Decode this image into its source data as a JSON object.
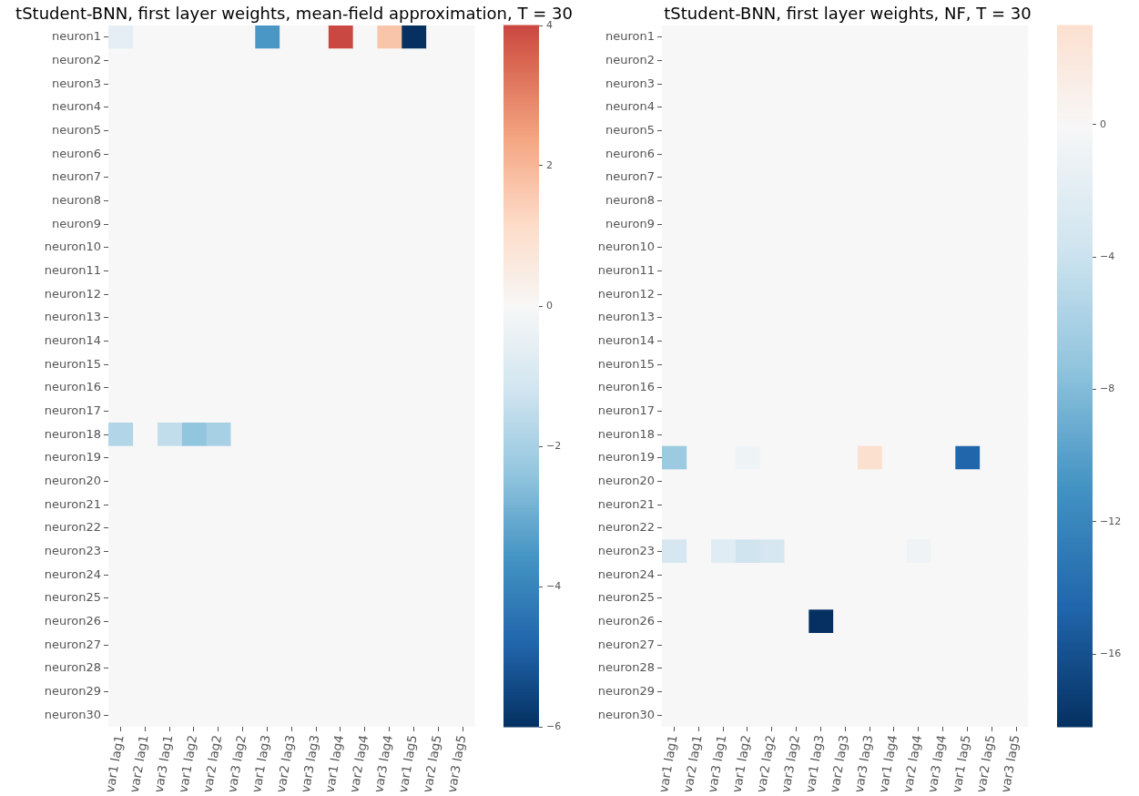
{
  "chart_data": [
    {
      "type": "heatmap",
      "title": "tStudent-BNN, first layer weights, mean-field approximation, T = 30",
      "categories": [
        "var1 lag1",
        "var2 lag1",
        "var3 lag1",
        "var1 lag2",
        "var2 lag2",
        "var3 lag2",
        "var1 lag3",
        "var2 lag3",
        "var3 lag3",
        "var1 lag4",
        "var2 lag4",
        "var3 lag4",
        "var1 lag5",
        "var2 lag5",
        "var3 lag5"
      ],
      "y_categories": [
        "neuron1",
        "neuron2",
        "neuron3",
        "neuron4",
        "neuron5",
        "neuron6",
        "neuron7",
        "neuron8",
        "neuron9",
        "neuron10",
        "neuron11",
        "neuron12",
        "neuron13",
        "neuron14",
        "neuron15",
        "neuron16",
        "neuron17",
        "neuron18",
        "neuron19",
        "neuron20",
        "neuron21",
        "neuron22",
        "neuron23",
        "neuron24",
        "neuron25",
        "neuron26",
        "neuron27",
        "neuron28",
        "neuron29",
        "neuron30"
      ],
      "cells": [
        [
          -0.6,
          0,
          0,
          0,
          0,
          0,
          -3.5,
          0,
          0,
          4,
          0,
          1.7,
          -6,
          0,
          0
        ],
        [
          0,
          0,
          0,
          0,
          0,
          0,
          0,
          0,
          0,
          0,
          0,
          0,
          0,
          0,
          0
        ],
        [
          0,
          0,
          0,
          0,
          0,
          0,
          0,
          0,
          0,
          0,
          0,
          0,
          0,
          0,
          0
        ],
        [
          0,
          0,
          0,
          0,
          0,
          0,
          0,
          0,
          0,
          0,
          0,
          0,
          0,
          0,
          0
        ],
        [
          0,
          0,
          0,
          0,
          0,
          0,
          0,
          0,
          0,
          0,
          0,
          0,
          0,
          0,
          0
        ],
        [
          0,
          0,
          0,
          0,
          0,
          0,
          0,
          0,
          0,
          0,
          0,
          0,
          0,
          0,
          0
        ],
        [
          0,
          0,
          0,
          0,
          0,
          0,
          0,
          0,
          0,
          0,
          0,
          0,
          0,
          0,
          0
        ],
        [
          0,
          0,
          0,
          0,
          0,
          0,
          0,
          0,
          0,
          0,
          0,
          0,
          0,
          0,
          0
        ],
        [
          0,
          0,
          0,
          0,
          0,
          0,
          0,
          0,
          0,
          0,
          0,
          0,
          0,
          0,
          0
        ],
        [
          0,
          0,
          0,
          0,
          0,
          0,
          0,
          0,
          0,
          0,
          0,
          0,
          0,
          0,
          0
        ],
        [
          0,
          0,
          0,
          0,
          0,
          0,
          0,
          0,
          0,
          0,
          0,
          0,
          0,
          0,
          0
        ],
        [
          0,
          0,
          0,
          0,
          0,
          0,
          0,
          0,
          0,
          0,
          0,
          0,
          0,
          0,
          0
        ],
        [
          0,
          0,
          0,
          0,
          0,
          0,
          0,
          0,
          0,
          0,
          0,
          0,
          0,
          0,
          0
        ],
        [
          0,
          0,
          0,
          0,
          0,
          0,
          0,
          0,
          0,
          0,
          0,
          0,
          0,
          0,
          0
        ],
        [
          0,
          0,
          0,
          0,
          0,
          0,
          0,
          0,
          0,
          0,
          0,
          0,
          0,
          0,
          0
        ],
        [
          0,
          0,
          0,
          0,
          0,
          0,
          0,
          0,
          0,
          0,
          0,
          0,
          0,
          0,
          0
        ],
        [
          0,
          0,
          0,
          0,
          0,
          0,
          0,
          0,
          0,
          0,
          0,
          0,
          0,
          0,
          0
        ],
        [
          -1.8,
          0,
          -1.5,
          -2.4,
          -2,
          0,
          0,
          0,
          0,
          0,
          0,
          0,
          0,
          0,
          0
        ],
        [
          0,
          0,
          0,
          0,
          0,
          0,
          0,
          0,
          0,
          0,
          0,
          0,
          0,
          0,
          0
        ],
        [
          0,
          0,
          0,
          0,
          0,
          0,
          0,
          0,
          0,
          0,
          0,
          0,
          0,
          0,
          0
        ],
        [
          0,
          0,
          0,
          0,
          0,
          0,
          0,
          0,
          0,
          0,
          0,
          0,
          0,
          0,
          0
        ],
        [
          0,
          0,
          0,
          0,
          0,
          0,
          0,
          0,
          0,
          0,
          0,
          0,
          0,
          0,
          0
        ],
        [
          0,
          0,
          0,
          0,
          0,
          0,
          0,
          0,
          0,
          0,
          0,
          0,
          0,
          0,
          0
        ],
        [
          0,
          0,
          0,
          0,
          0,
          0,
          0,
          0,
          0,
          0,
          0,
          0,
          0,
          0,
          0
        ],
        [
          0,
          0,
          0,
          0,
          0,
          0,
          0,
          0,
          0,
          0,
          0,
          0,
          0,
          0,
          0
        ],
        [
          0,
          0,
          0,
          0,
          0,
          0,
          0,
          0,
          0,
          0,
          0,
          0,
          0,
          0,
          0
        ],
        [
          0,
          0,
          0,
          0,
          0,
          0,
          0,
          0,
          0,
          0,
          0,
          0,
          0,
          0,
          0
        ],
        [
          0,
          0,
          0,
          0,
          0,
          0,
          0,
          0,
          0,
          0,
          0,
          0,
          0,
          0,
          0
        ],
        [
          0,
          0,
          0,
          0,
          0,
          0,
          0,
          0,
          0,
          0,
          0,
          0,
          0,
          0,
          0
        ],
        [
          0,
          0,
          0,
          0,
          0,
          0,
          0,
          0,
          0,
          0,
          0,
          0,
          0,
          0,
          0
        ]
      ],
      "clim": [
        -6,
        4
      ],
      "cticks": [
        -6,
        -4,
        -2,
        0,
        2,
        4
      ]
    },
    {
      "type": "heatmap",
      "title": "tStudent-BNN, first layer weights, NF, T = 30",
      "categories": [
        "var1 lag1",
        "var2 lag1",
        "var3 lag1",
        "var1 lag2",
        "var2 lag2",
        "var3 lag2",
        "var1 lag3",
        "var2 lag3",
        "var3 lag3",
        "var1 lag4",
        "var2 lag4",
        "var3 lag4",
        "var1 lag5",
        "var2 lag5",
        "var3 lag5"
      ],
      "y_categories": [
        "neuron1",
        "neuron2",
        "neuron3",
        "neuron4",
        "neuron5",
        "neuron6",
        "neuron7",
        "neuron8",
        "neuron9",
        "neuron10",
        "neuron11",
        "neuron12",
        "neuron13",
        "neuron14",
        "neuron15",
        "neuron16",
        "neuron17",
        "neuron18",
        "neuron19",
        "neuron20",
        "neuron21",
        "neuron22",
        "neuron23",
        "neuron24",
        "neuron25",
        "neuron26",
        "neuron27",
        "neuron28",
        "neuron29",
        "neuron30"
      ],
      "cells": [
        [
          0,
          0,
          0,
          0,
          0,
          0,
          0,
          0,
          0,
          0,
          0,
          0,
          0,
          0,
          0
        ],
        [
          0,
          0,
          0,
          0,
          0,
          0,
          0,
          0,
          0,
          0,
          0,
          0,
          0,
          0,
          0
        ],
        [
          0,
          0,
          0,
          0,
          0,
          0,
          0,
          0,
          0,
          0,
          0,
          0,
          0,
          0,
          0
        ],
        [
          0,
          0,
          0,
          0,
          0,
          0,
          0,
          0,
          0,
          0,
          0,
          0,
          0,
          0,
          0
        ],
        [
          0,
          0,
          0,
          0,
          0,
          0,
          0,
          0,
          0,
          0,
          0,
          0,
          0,
          0,
          0
        ],
        [
          0,
          0,
          0,
          0,
          0,
          0,
          0,
          0,
          0,
          0,
          0,
          0,
          0,
          0,
          0
        ],
        [
          0,
          0,
          0,
          0,
          0,
          0,
          0,
          0,
          0,
          0,
          0,
          0,
          0,
          0,
          0
        ],
        [
          0,
          0,
          0,
          0,
          0,
          0,
          0,
          0,
          0,
          0,
          0,
          0,
          0,
          0,
          0
        ],
        [
          0,
          0,
          0,
          0,
          0,
          0,
          0,
          0,
          0,
          0,
          0,
          0,
          0,
          0,
          0
        ],
        [
          0,
          0,
          0,
          0,
          0,
          0,
          0,
          0,
          0,
          0,
          0,
          0,
          0,
          0,
          0
        ],
        [
          0,
          0,
          0,
          0,
          0,
          0,
          0,
          0,
          0,
          0,
          0,
          0,
          0,
          0,
          0
        ],
        [
          0,
          0,
          0,
          0,
          0,
          0,
          0,
          0,
          0,
          0,
          0,
          0,
          0,
          0,
          0
        ],
        [
          0,
          0,
          0,
          0,
          0,
          0,
          0,
          0,
          0,
          0,
          0,
          0,
          0,
          0,
          0
        ],
        [
          0,
          0,
          0,
          0,
          0,
          0,
          0,
          0,
          0,
          0,
          0,
          0,
          0,
          0,
          0
        ],
        [
          0,
          0,
          0,
          0,
          0,
          0,
          0,
          0,
          0,
          0,
          0,
          0,
          0,
          0,
          0
        ],
        [
          0,
          0,
          0,
          0,
          0,
          0,
          0,
          0,
          0,
          0,
          0,
          0,
          0,
          0,
          0
        ],
        [
          0,
          0,
          0,
          0,
          0,
          0,
          0,
          0,
          0,
          0,
          0,
          0,
          0,
          0,
          0
        ],
        [
          0,
          0,
          0,
          0,
          0,
          0,
          0,
          0,
          0,
          0,
          0,
          0,
          0,
          0,
          0
        ],
        [
          -6.7,
          0,
          0,
          -0.9,
          0,
          0,
          0,
          0,
          3,
          0,
          0,
          0,
          -14.6,
          0,
          0
        ],
        [
          0,
          0,
          0,
          0,
          0,
          0,
          0,
          0,
          0,
          0,
          0,
          0,
          0,
          0,
          0
        ],
        [
          0,
          0,
          0,
          0,
          0,
          0,
          0,
          0,
          0,
          0,
          0,
          0,
          0,
          0,
          0
        ],
        [
          0,
          0,
          0,
          0,
          0,
          0,
          0,
          0,
          0,
          0,
          0,
          0,
          0,
          0,
          0
        ],
        [
          -3.2,
          0,
          -2.3,
          -3.7,
          -3.2,
          0,
          0,
          0,
          0,
          0,
          -0.8,
          0,
          0,
          0,
          0
        ],
        [
          0,
          0,
          0,
          0,
          0,
          0,
          0,
          0,
          0,
          0,
          0,
          0,
          0,
          0,
          0
        ],
        [
          0,
          0,
          0,
          0,
          0,
          0,
          0,
          0,
          0,
          0,
          0,
          0,
          0,
          0,
          0
        ],
        [
          0,
          0,
          0,
          0,
          0,
          0,
          -18.2,
          0,
          0,
          0,
          0,
          0,
          0,
          0,
          0
        ],
        [
          0,
          0,
          0,
          0,
          0,
          0,
          0,
          0,
          0,
          0,
          0,
          0,
          0,
          0,
          0
        ],
        [
          0,
          0,
          0,
          0,
          0,
          0,
          0,
          0,
          0,
          0,
          0,
          0,
          0,
          0,
          0
        ],
        [
          0,
          0,
          0,
          0,
          0,
          0,
          0,
          0,
          0,
          0,
          0,
          0,
          0,
          0,
          0
        ],
        [
          0,
          0,
          0,
          0,
          0,
          0,
          0,
          0,
          0,
          0,
          0,
          0,
          0,
          0,
          0
        ]
      ],
      "clim": [
        -18.2,
        3
      ],
      "cticks": [
        -16,
        -12,
        -8,
        -4,
        0
      ]
    }
  ]
}
